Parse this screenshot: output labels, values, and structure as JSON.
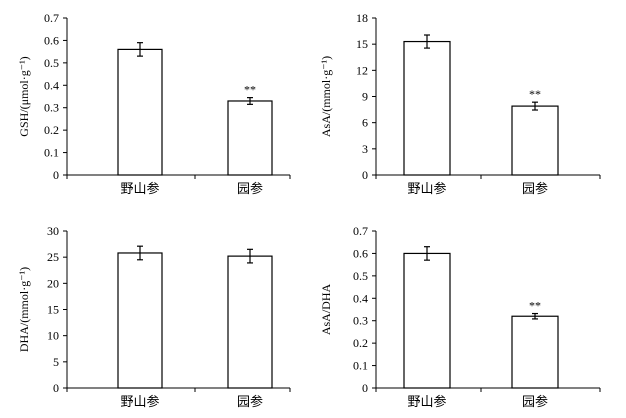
{
  "chart_data": [
    {
      "type": "bar",
      "categories": [
        "野山参",
        "园参"
      ],
      "values": [
        0.56,
        0.33
      ],
      "errors": [
        0.03,
        0.015
      ],
      "annotations": [
        "",
        "**"
      ],
      "ylabel": "GSH/(μmol·g⁻¹)",
      "ylim": [
        0,
        0.7
      ],
      "yticks": [
        "0",
        "0.1",
        "0.2",
        "0.3",
        "0.4",
        "0.5",
        "0.6",
        "0.7"
      ]
    },
    {
      "type": "bar",
      "categories": [
        "野山参",
        "园参"
      ],
      "values": [
        15.3,
        7.9
      ],
      "errors": [
        0.75,
        0.45
      ],
      "annotations": [
        "",
        "**"
      ],
      "ylabel": "AsA/(mmol·g⁻¹)",
      "ylim": [
        0,
        18
      ],
      "yticks": [
        "0",
        "3",
        "6",
        "9",
        "12",
        "15",
        "18"
      ]
    },
    {
      "type": "bar",
      "categories": [
        "野山参",
        "园参"
      ],
      "values": [
        25.8,
        25.2
      ],
      "errors": [
        1.3,
        1.3
      ],
      "annotations": [
        "",
        ""
      ],
      "ylabel": "DHA/(mmol·g⁻¹)",
      "ylim": [
        0,
        30
      ],
      "yticks": [
        "0",
        "5",
        "10",
        "15",
        "20",
        "25",
        "30"
      ]
    },
    {
      "type": "bar",
      "categories": [
        "野山参",
        "园参"
      ],
      "values": [
        0.6,
        0.32
      ],
      "errors": [
        0.03,
        0.012
      ],
      "annotations": [
        "",
        "**"
      ],
      "ylabel": "AsA/DHA",
      "ylim": [
        0,
        0.7
      ],
      "yticks": [
        "0",
        "0.1",
        "0.2",
        "0.3",
        "0.4",
        "0.5",
        "0.6",
        "0.7"
      ]
    }
  ]
}
